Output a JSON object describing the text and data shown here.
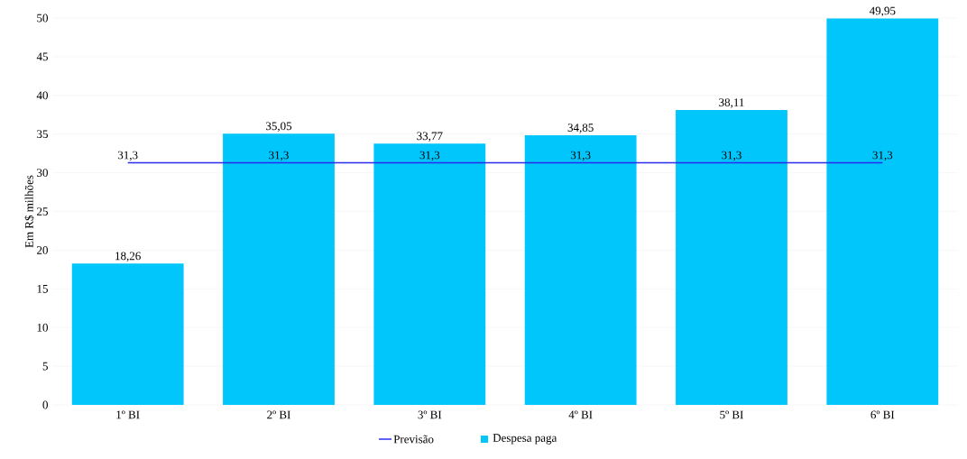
{
  "chart_data": {
    "type": "bar",
    "ylabel": "Em R$ milhões",
    "categories": [
      "1º BI",
      "2º BI",
      "3º BI",
      "4º BI",
      "5º BI",
      "6º BI"
    ],
    "series": [
      {
        "name": "Previsão",
        "type": "line",
        "color": "#2b2bf0",
        "values": [
          31.3,
          31.3,
          31.3,
          31.3,
          31.3,
          31.3
        ],
        "value_labels": [
          "31,3",
          "31,3",
          "31,3",
          "31,3",
          "31,3",
          "31,3"
        ]
      },
      {
        "name": "Despesa paga",
        "color": "#00c6fb",
        "values": [
          18.26,
          35.05,
          33.77,
          34.85,
          38.11,
          49.95
        ],
        "value_labels": [
          "18,26",
          "35,05",
          "33,77",
          "34,85",
          "38,11",
          "49,95"
        ]
      }
    ],
    "ylim": [
      0,
      50
    ],
    "yticks": [
      0,
      5,
      10,
      15,
      20,
      25,
      30,
      35,
      40,
      45,
      50
    ],
    "grid": "y",
    "legend": "bottom"
  }
}
